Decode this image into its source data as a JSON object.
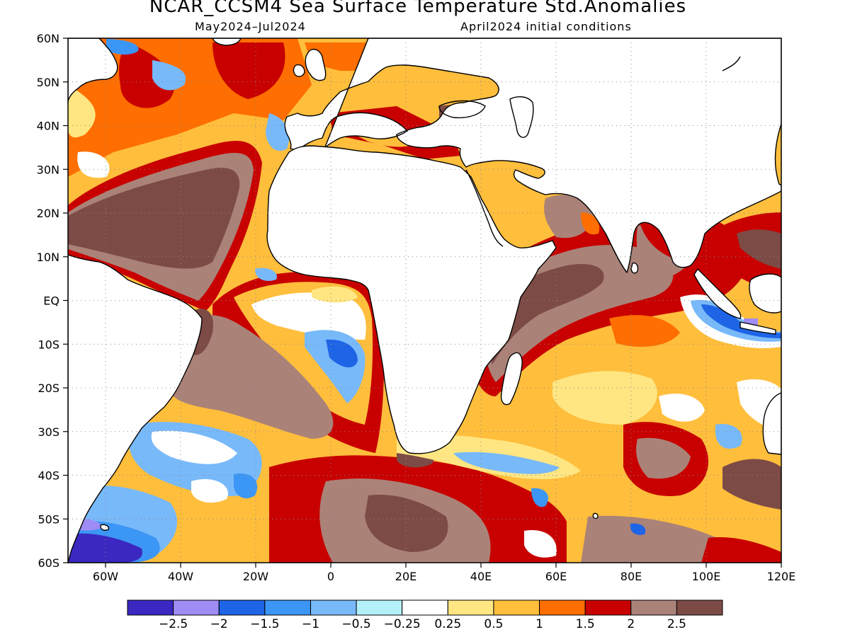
{
  "title": "NCAR_CCSM4 Sea Surface Temperature Std.Anomalies",
  "subtitle_left": "May2024–Jul2024",
  "subtitle_right": "April2024 initial conditions",
  "map": {
    "lat_labels": [
      "60N",
      "50N",
      "40N",
      "30N",
      "20N",
      "10N",
      "EQ",
      "10S",
      "20S",
      "30S",
      "40S",
      "50S",
      "60S"
    ],
    "lon_labels": [
      "60W",
      "40W",
      "20W",
      "0",
      "20E",
      "40E",
      "60E",
      "80E",
      "100E",
      "120E"
    ],
    "lat_values": [
      60,
      50,
      40,
      30,
      20,
      10,
      0,
      -10,
      -20,
      -30,
      -40,
      -50,
      -60
    ],
    "lon_values": [
      -60,
      -40,
      -20,
      0,
      20,
      40,
      60,
      80,
      100,
      120
    ],
    "lon_range": [
      -70,
      120
    ],
    "lat_range": [
      -60,
      60
    ],
    "grid": "dotted"
  },
  "colorbar": {
    "colors": [
      "#3b28c0",
      "#a08cf5",
      "#1e64e6",
      "#3c96f5",
      "#78b9fa",
      "#b4f0fa",
      "#ffffff",
      "#ffe682",
      "#ffbe3c",
      "#ff6e00",
      "#c80000",
      "#aa8278",
      "#7d4b46"
    ],
    "labels": [
      "−2.5",
      "−2",
      "−1.5",
      "−1",
      "−0.5",
      "−0.25",
      "0.25",
      "0.5",
      "1",
      "1.5",
      "2",
      "2.5"
    ]
  },
  "colors": {
    "land": "#ffffff",
    "coast": "#000000"
  }
}
